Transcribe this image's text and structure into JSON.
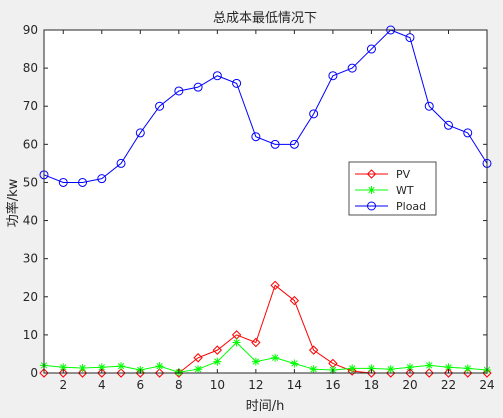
{
  "chart_data": {
    "type": "line",
    "title": "总成本最低情况下",
    "xlabel": "时间/h",
    "ylabel": "功率/kw",
    "xlim": [
      1,
      24
    ],
    "ylim": [
      0,
      90
    ],
    "xticks": [
      2,
      4,
      6,
      8,
      10,
      12,
      14,
      16,
      18,
      20,
      22,
      24
    ],
    "yticks": [
      0,
      10,
      20,
      30,
      40,
      50,
      60,
      70,
      80,
      90
    ],
    "grid": false,
    "legend_position": "right-middle",
    "x": [
      1,
      2,
      3,
      4,
      5,
      6,
      7,
      8,
      9,
      10,
      11,
      12,
      13,
      14,
      15,
      16,
      17,
      18,
      19,
      20,
      21,
      22,
      23,
      24
    ],
    "series": [
      {
        "name": "PV",
        "color": "#ff0000",
        "marker": "diamond",
        "values": [
          0,
          0,
          0,
          0,
          0,
          0,
          0,
          0,
          4,
          6,
          10,
          8,
          23,
          19,
          6,
          2.5,
          0.5,
          0,
          0,
          0,
          0,
          0,
          0,
          0
        ]
      },
      {
        "name": "WT",
        "color": "#00ff00",
        "marker": "asterisk",
        "values": [
          2,
          1.5,
          1.3,
          1.5,
          1.8,
          0.8,
          1.8,
          0.2,
          1,
          3,
          8,
          3,
          4,
          2.5,
          1,
          0.8,
          1.2,
          1.2,
          1,
          1.5,
          2,
          1.5,
          1.2,
          0.8
        ]
      },
      {
        "name": "Pload",
        "color": "#0000ff",
        "marker": "circle",
        "values": [
          52,
          50,
          50,
          51,
          55,
          63,
          70,
          74,
          75,
          78,
          76,
          62,
          60,
          60,
          68,
          78,
          80,
          85,
          90,
          88,
          70,
          65,
          63,
          55
        ]
      }
    ]
  }
}
